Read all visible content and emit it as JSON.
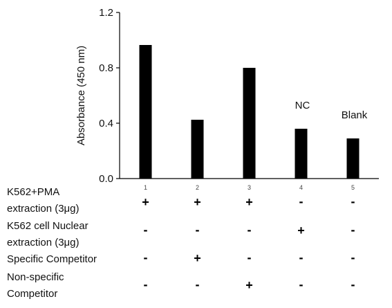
{
  "chart_data": {
    "type": "bar",
    "title": "",
    "xlabel": "",
    "ylabel": "Absorbance (450 nm)",
    "ylim": [
      0,
      1.2
    ],
    "yticks": [
      "0.0",
      "0.4",
      "0.8",
      "1.2"
    ],
    "categories": [
      "1",
      "2",
      "3",
      "4",
      "5"
    ],
    "values": [
      0.965,
      0.425,
      0.8,
      0.36,
      0.29
    ],
    "bar_color": "#000000",
    "grid": false,
    "annotations": [
      {
        "category": "4",
        "text": "NC"
      },
      {
        "category": "5",
        "text": "Blank"
      }
    ]
  },
  "conditions": [
    {
      "label_lines": [
        "K562+PMA",
        "extraction (3μg)"
      ],
      "signs": [
        "+",
        "+",
        "+",
        "-",
        "-"
      ]
    },
    {
      "label_lines": [
        "K562 cell Nuclear",
        "extraction (3μg)"
      ],
      "signs": [
        "-",
        "-",
        "-",
        "+",
        "-"
      ]
    },
    {
      "label_lines": [
        "Specific Competitor"
      ],
      "signs": [
        "-",
        "+",
        "-",
        "-",
        "-"
      ]
    },
    {
      "label_lines": [
        "Non-specific",
        "Competitor"
      ],
      "signs": [
        "-",
        "-",
        "+",
        "-",
        "-"
      ]
    }
  ]
}
